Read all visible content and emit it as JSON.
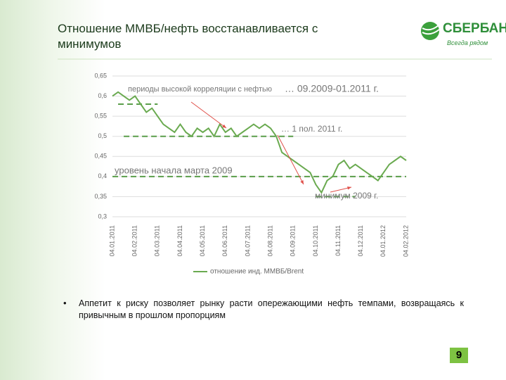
{
  "header": {
    "title": "Отношение ММВБ/нефть восстанавливается с минимумов",
    "logo": "СБЕРБАНК",
    "slogan": "Всегда рядом"
  },
  "chart_data": {
    "type": "line",
    "categories": [
      "04.01.2011",
      null,
      null,
      null,
      "04.02.2011",
      null,
      null,
      null,
      "04.03.2011",
      null,
      null,
      null,
      "04.04.2011",
      null,
      null,
      null,
      "04.05.2011",
      null,
      null,
      null,
      "04.06.2011",
      null,
      null,
      null,
      "04.07.2011",
      null,
      null,
      null,
      "04.08.2011",
      null,
      null,
      null,
      "04.09.2011",
      null,
      null,
      null,
      "04.10.2011",
      null,
      null,
      null,
      "04.11.2011",
      null,
      null,
      null,
      "04.12.2011",
      null,
      null,
      null,
      "04.01.2012",
      null,
      null,
      null,
      "04.02.2012"
    ],
    "series": [
      {
        "name": "отношение инд. ММВБ/Brent",
        "color": "#6aaa50",
        "values": [
          0.6,
          0.61,
          0.6,
          0.59,
          0.6,
          0.58,
          0.56,
          0.57,
          0.55,
          0.53,
          0.52,
          0.51,
          0.53,
          0.51,
          0.5,
          0.52,
          0.51,
          0.52,
          0.5,
          0.53,
          0.51,
          0.52,
          0.5,
          0.51,
          0.52,
          0.53,
          0.52,
          0.53,
          0.52,
          0.5,
          0.46,
          0.45,
          0.44,
          0.43,
          0.42,
          0.41,
          0.38,
          0.36,
          0.39,
          0.4,
          0.43,
          0.44,
          0.42,
          0.43,
          0.42,
          0.41,
          0.4,
          0.39,
          0.41,
          0.43,
          0.44,
          0.45,
          0.44
        ]
      }
    ],
    "ylim": [
      0.3,
      0.65
    ],
    "yticks": [
      {
        "value": 0.3,
        "label": "0,3"
      },
      {
        "value": 0.35,
        "label": "0,35"
      },
      {
        "value": 0.4,
        "label": "0,4"
      },
      {
        "value": 0.45,
        "label": "0,45"
      },
      {
        "value": 0.5,
        "label": "0,5"
      },
      {
        "value": 0.55,
        "label": "0,55"
      },
      {
        "value": 0.6,
        "label": "0,6"
      },
      {
        "value": 0.65,
        "label": "0,65"
      }
    ],
    "grid": true,
    "reference_lines": [
      {
        "value": 0.58
      },
      {
        "value": 0.5
      },
      {
        "value": 0.4
      },
      {
        "value": 0.35
      }
    ],
    "annotations": [
      "периоды высокой корреляции с нефтью",
      "… 09.2009-01.2011 г.",
      "… 1 пол. 2011 г.",
      "уровень начала марта 2009",
      "минимум 2009 г."
    ]
  },
  "bullet": "Аппетит к риску позволяет рынку расти опережающими нефть темпами, возвращаясь к привычным в прошлом пропорциям",
  "page_number": "9"
}
